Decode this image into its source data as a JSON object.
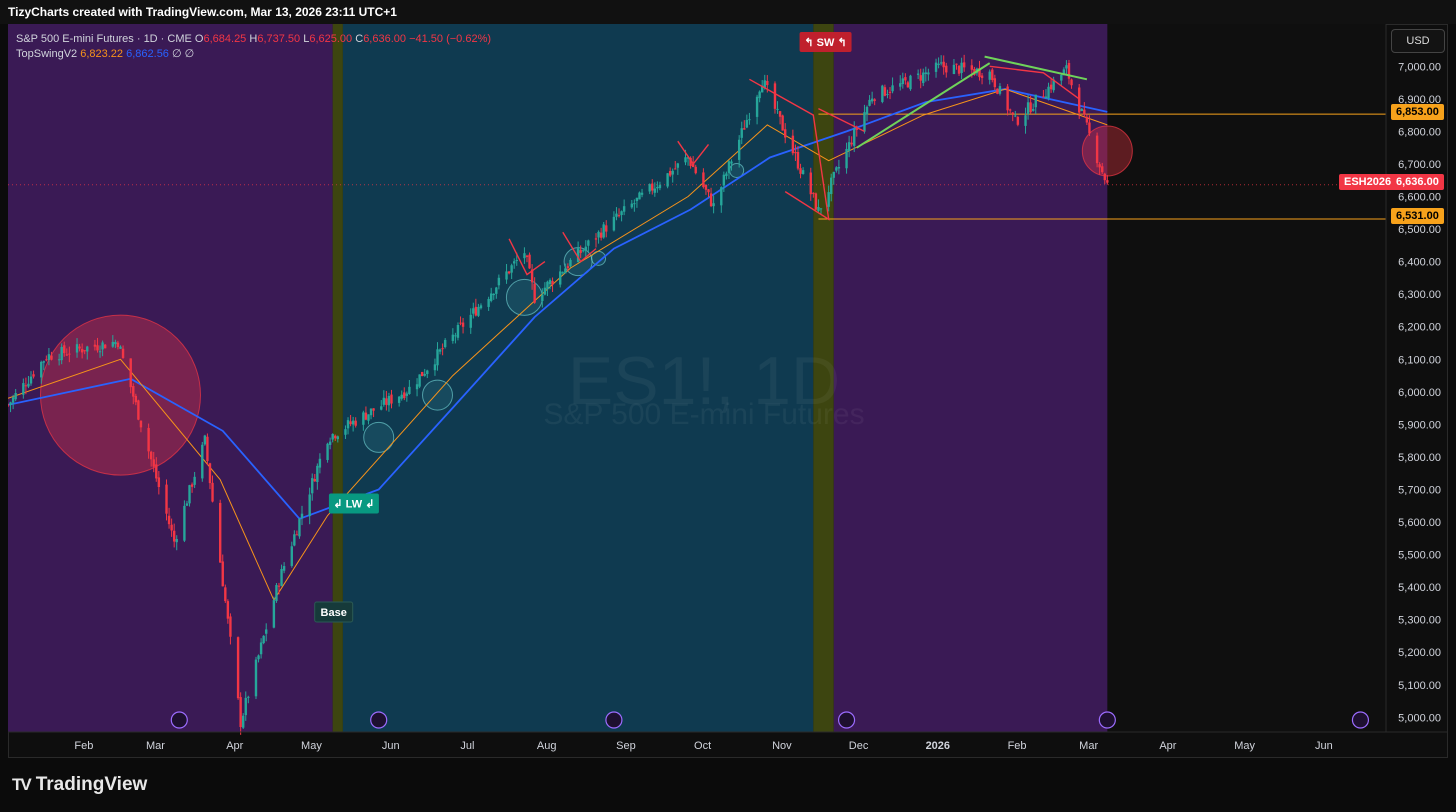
{
  "header": {
    "credit": "TizyCharts created with TradingView.com, Mar 13, 2026 23:11 UTC+1"
  },
  "legend": {
    "symbol": "S&P 500 E-mini Futures · 1D · CME",
    "o_label": "O",
    "o_value": "6,684.25",
    "h_label": "H",
    "h_value": "6,737.50",
    "l_label": "L",
    "l_value": "6,625.00",
    "c_label": "C",
    "c_value": "6,636.00",
    "change": "−41.50 (−0.62%)",
    "indicator": "TopSwingV2",
    "ind_v1": "6,823.22",
    "ind_v2": "6,862.56",
    "ind_z1": "∅",
    "ind_z2": "∅"
  },
  "currency_button": "USD",
  "watermark": {
    "ticker": "ES1!, 1D",
    "name": "S&P 500 E-mini Futures"
  },
  "brand": "TradingView",
  "price_labels": {
    "resistance": "6,853.00",
    "current_ticker": "ESH2026",
    "current": "6,636.00",
    "support": "6,531.00"
  },
  "markers": {
    "lw": "↲ LW ↲",
    "sw": "↰ SW ↰",
    "base": "Base"
  },
  "chart_data": {
    "type": "candlestick",
    "symbol": "ES1!",
    "interval": "1D",
    "x_labels": [
      "Feb",
      "Mar",
      "Apr",
      "May",
      "Jun",
      "Jul",
      "Aug",
      "Sep",
      "Oct",
      "Nov",
      "Dec",
      "2026",
      "Feb",
      "Mar",
      "Apr",
      "May",
      "Jun"
    ],
    "y_ticks": [
      "7,000.00",
      "6,900.00",
      "6,800.00",
      "6,700.00",
      "6,600.00",
      "6,500.00",
      "6,400.00",
      "6,300.00",
      "6,200.00",
      "6,100.00",
      "6,000.00",
      "5,900.00",
      "5,800.00",
      "5,700.00",
      "5,600.00",
      "5,500.00",
      "5,400.00",
      "5,300.00",
      "5,200.00",
      "5,100.00",
      "5,000.00"
    ],
    "ylim": [
      4955,
      7130
    ],
    "xlim": [
      "2025-01-07",
      "2026-06-30"
    ],
    "horizontal_lines": [
      6853,
      6531
    ],
    "last_close": 6636,
    "price_path": [
      [
        "2025-01-07",
        5960
      ],
      [
        "2025-01-22",
        6110
      ],
      [
        "2025-02-19",
        6155
      ],
      [
        "2025-03-13",
        5540
      ],
      [
        "2025-03-25",
        5850
      ],
      [
        "2025-04-08",
        4985
      ],
      [
        "2025-04-23",
        5420
      ],
      [
        "2025-05-12",
        5860
      ],
      [
        "2025-06-13",
        6010
      ],
      [
        "2025-07-28",
        6430
      ],
      [
        "2025-08-01",
        6290
      ],
      [
        "2025-08-28",
        6500
      ],
      [
        "2025-09-30",
        6720
      ],
      [
        "2025-10-10",
        6570
      ],
      [
        "2025-10-29",
        6960
      ],
      [
        "2025-11-20",
        6555
      ],
      [
        "2025-12-11",
        6910
      ],
      [
        "2025-12-23",
        6945
      ],
      [
        "2026-01-07",
        7000
      ],
      [
        "2026-01-26",
        6980
      ],
      [
        "2026-02-05",
        6830
      ],
      [
        "2026-02-25",
        6990
      ],
      [
        "2026-03-09",
        6720
      ],
      [
        "2026-03-13",
        6636
      ]
    ],
    "ma_fast_path": [
      [
        "2025-01-07",
        5980
      ],
      [
        "2025-02-20",
        6100
      ],
      [
        "2025-03-31",
        5730
      ],
      [
        "2025-04-21",
        5360
      ],
      [
        "2025-05-12",
        5620
      ],
      [
        "2025-06-30",
        6050
      ],
      [
        "2025-08-15",
        6380
      ],
      [
        "2025-09-30",
        6600
      ],
      [
        "2025-10-31",
        6820
      ],
      [
        "2025-11-24",
        6710
      ],
      [
        "2025-12-31",
        6850
      ],
      [
        "2026-02-01",
        6930
      ],
      [
        "2026-03-13",
        6820
      ]
    ],
    "ma_slow_path": [
      [
        "2025-01-07",
        5960
      ],
      [
        "2025-02-24",
        6040
      ],
      [
        "2025-04-01",
        5880
      ],
      [
        "2025-05-01",
        5610
      ],
      [
        "2025-06-01",
        5700
      ],
      [
        "2025-07-01",
        5960
      ],
      [
        "2025-08-01",
        6230
      ],
      [
        "2025-09-01",
        6440
      ],
      [
        "2025-10-01",
        6560
      ],
      [
        "2025-11-01",
        6720
      ],
      [
        "2025-12-01",
        6800
      ],
      [
        "2026-01-01",
        6890
      ],
      [
        "2026-02-01",
        6930
      ],
      [
        "2026-03-13",
        6860
      ]
    ],
    "backgrounds": [
      {
        "from": "2025-01-07",
        "to": "2025-05-14",
        "color": "#3a1a55"
      },
      {
        "from": "2025-05-14",
        "to": "2025-05-18",
        "color": "#3d4510"
      },
      {
        "from": "2025-05-18",
        "to": "2025-11-18",
        "color": "#0f3a50"
      },
      {
        "from": "2025-11-18",
        "to": "2025-11-26",
        "color": "#3d4510"
      },
      {
        "from": "2025-11-26",
        "to": "2026-03-13",
        "color": "#3a1a55"
      }
    ],
    "circles": [
      {
        "date": "2025-02-20",
        "price": 5990,
        "r": 80,
        "color": "red"
      },
      {
        "date": "2026-03-13",
        "price": 6740,
        "r": 25,
        "color": "red"
      },
      {
        "date": "2025-06-01",
        "price": 5860,
        "r": 15,
        "color": "teal"
      },
      {
        "date": "2025-06-24",
        "price": 5990,
        "r": 15,
        "color": "teal"
      },
      {
        "date": "2025-07-28",
        "price": 6290,
        "r": 18,
        "color": "teal"
      },
      {
        "date": "2025-08-18",
        "price": 6400,
        "r": 14,
        "color": "teal"
      },
      {
        "date": "2025-08-26",
        "price": 6410,
        "r": 7,
        "color": "teal"
      },
      {
        "date": "2025-10-19",
        "price": 6680,
        "r": 7,
        "color": "teal"
      }
    ],
    "trendlines": [
      {
        "points": [
          [
            "2025-07-22",
            6470
          ],
          [
            "2025-07-29",
            6360
          ],
          [
            "2025-08-05",
            6400
          ]
        ],
        "color": "red"
      },
      {
        "points": [
          [
            "2025-08-12",
            6490
          ],
          [
            "2025-08-19",
            6400
          ],
          [
            "2025-08-25",
            6440
          ]
        ],
        "color": "red"
      },
      {
        "points": [
          [
            "2025-09-26",
            6770
          ],
          [
            "2025-10-02",
            6700
          ],
          [
            "2025-10-08",
            6760
          ]
        ],
        "color": "red"
      },
      {
        "points": [
          [
            "2025-10-24",
            6960
          ],
          [
            "2025-11-18",
            6850
          ],
          [
            "2025-11-24",
            6530
          ],
          [
            "2025-11-07",
            6615
          ]
        ],
        "color": "red"
      },
      {
        "points": [
          [
            "2025-11-20",
            6870
          ],
          [
            "2025-12-08",
            6800
          ]
        ],
        "color": "red"
      },
      {
        "points": [
          [
            "2025-12-05",
            6750
          ],
          [
            "2026-01-26",
            7010
          ]
        ],
        "color": "green"
      },
      {
        "points": [
          [
            "2026-01-24",
            7030
          ],
          [
            "2026-03-05",
            6960
          ]
        ],
        "color": "green"
      },
      {
        "points": [
          [
            "2026-01-26",
            7000
          ],
          [
            "2026-02-16",
            6980
          ],
          [
            "2026-03-02",
            6900
          ]
        ],
        "color": "red"
      }
    ]
  }
}
